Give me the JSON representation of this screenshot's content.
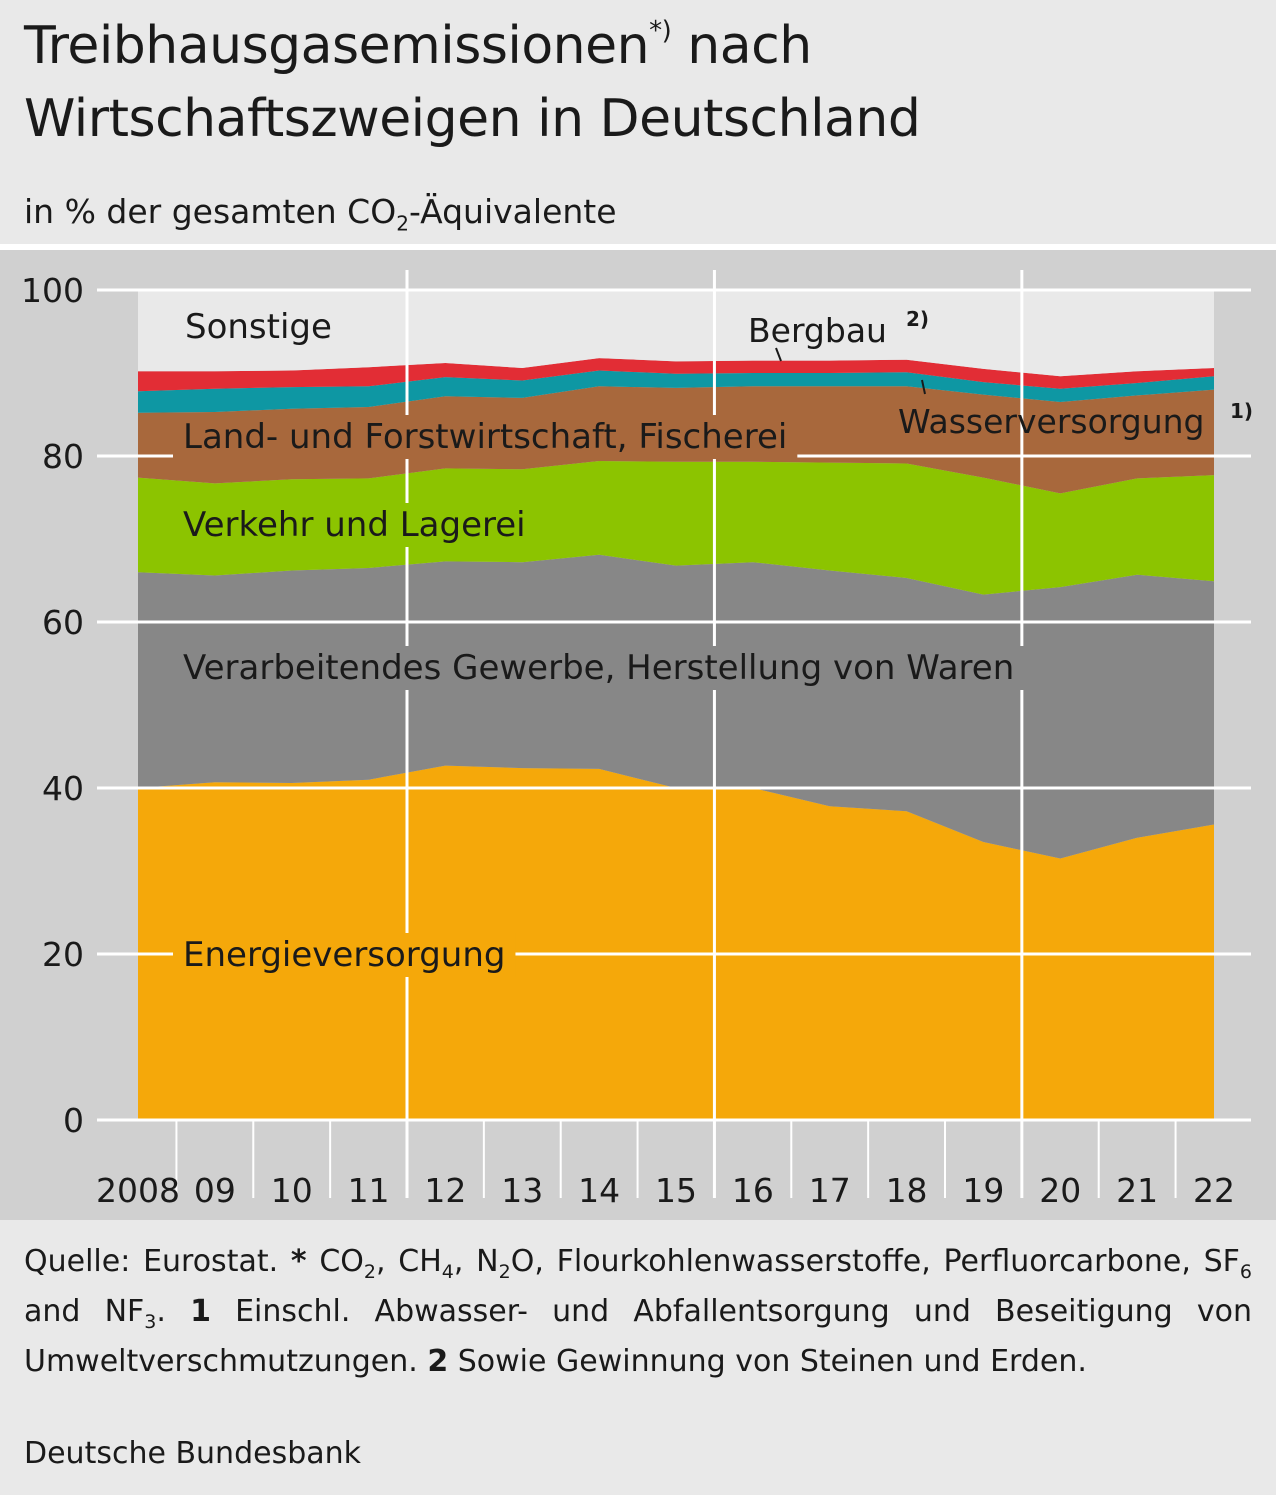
{
  "header": {
    "title_line1": "Treibhausgasemissionen",
    "title_sup": "*)",
    "title_line1_end": " nach",
    "title_line2": "Wirtschaftszweigen in Deutschland",
    "subtitle_pre": "in % der gesamten CO",
    "subtitle_sub": "2",
    "subtitle_post": "-Äquivalente"
  },
  "footer": {
    "quelle": "Quelle: Eurostat. ",
    "star": "*",
    "t1": " CO",
    "s1": "2",
    "t2": ", CH",
    "s2": "4",
    "t3": ", N",
    "s3": "2",
    "t4": "O, Flourkohlenwasserstoffe, Perfluorcarbone, SF",
    "s4": "6",
    "t5": " and NF",
    "s5": "3",
    "t6": ". ",
    "n1": "1",
    "t7": " Einschl. Abwasser- und Abfallentsorgung und Beseitigung von Umweltverschmutzungen. ",
    "n2": "2",
    "t8": " Sowie Gewinnung von Steinen und Erden.",
    "publisher": "Deutsche Bundesbank"
  },
  "chart_data": {
    "type": "area",
    "stacked": true,
    "title": "Treibhausgasemissionen*) nach Wirtschaftszweigen in Deutschland",
    "ylabel": "in % der gesamten CO2-Äquivalente",
    "ylim": [
      0,
      100
    ],
    "yticks": [
      0,
      20,
      40,
      60,
      80,
      100
    ],
    "grid": true,
    "x": [
      "2008",
      "09",
      "10",
      "11",
      "12",
      "13",
      "14",
      "15",
      "16",
      "17",
      "18",
      "19",
      "20",
      "21",
      "22"
    ],
    "series": [
      {
        "name": "Energieversorgung",
        "color": "#f5a80a",
        "values": [
          40.0,
          40.7,
          40.6,
          41.0,
          42.7,
          42.4,
          42.3,
          40.0,
          40.0,
          37.8,
          37.2,
          33.5,
          31.5,
          34.0,
          35.6
        ]
      },
      {
        "name": "Verarbeitendes Gewerbe, Herstellung von Waren",
        "color": "#878787",
        "values": [
          26.0,
          24.9,
          25.6,
          25.5,
          24.6,
          24.8,
          25.8,
          26.8,
          27.2,
          28.4,
          28.1,
          29.8,
          32.7,
          31.7,
          29.3
        ]
      },
      {
        "name": "Verkehr und Lagerei",
        "color": "#8cc400",
        "values": [
          11.4,
          11.1,
          11.0,
          10.8,
          11.2,
          11.2,
          11.3,
          12.5,
          12.1,
          13.0,
          13.8,
          14.1,
          11.3,
          11.6,
          12.8
        ]
      },
      {
        "name": "Land- und Forstwirtschaft, Fischerei",
        "color": "#a8683c",
        "values": [
          7.8,
          8.6,
          8.5,
          8.6,
          8.7,
          8.6,
          9.0,
          8.9,
          9.1,
          9.2,
          9.3,
          10.0,
          11.0,
          10.0,
          10.3
        ]
      },
      {
        "name": "Wasserversorgung",
        "color": "#0e97a3",
        "values": [
          2.6,
          2.8,
          2.6,
          2.5,
          2.3,
          2.1,
          1.9,
          1.7,
          1.6,
          1.6,
          1.7,
          1.5,
          1.6,
          1.5,
          1.6
        ]
      },
      {
        "name": "Bergbau",
        "color": "#e22d35",
        "values": [
          2.4,
          2.1,
          2.0,
          2.3,
          1.7,
          1.5,
          1.5,
          1.5,
          1.5,
          1.5,
          1.5,
          1.6,
          1.5,
          1.4,
          1.0
        ]
      },
      {
        "name": "Sonstige",
        "color": "#e9e9e9",
        "values": [
          9.8,
          9.8,
          9.7,
          9.3,
          8.8,
          9.4,
          8.2,
          8.6,
          8.5,
          8.5,
          8.4,
          9.5,
          10.4,
          9.8,
          9.4
        ]
      }
    ],
    "labels": {
      "energie": "Energieversorgung",
      "gewerbe": "Verarbeitendes Gewerbe, Herstellung von Waren",
      "verkehr": "Verkehr und Lagerei",
      "land": "Land- und Forstwirtschaft, Fischerei",
      "wasser": "Wasserversorgung",
      "wasser_sup": "1)",
      "bergbau": "Bergbau",
      "bergbau_sup": "2)",
      "sonstige": "Sonstige"
    }
  }
}
